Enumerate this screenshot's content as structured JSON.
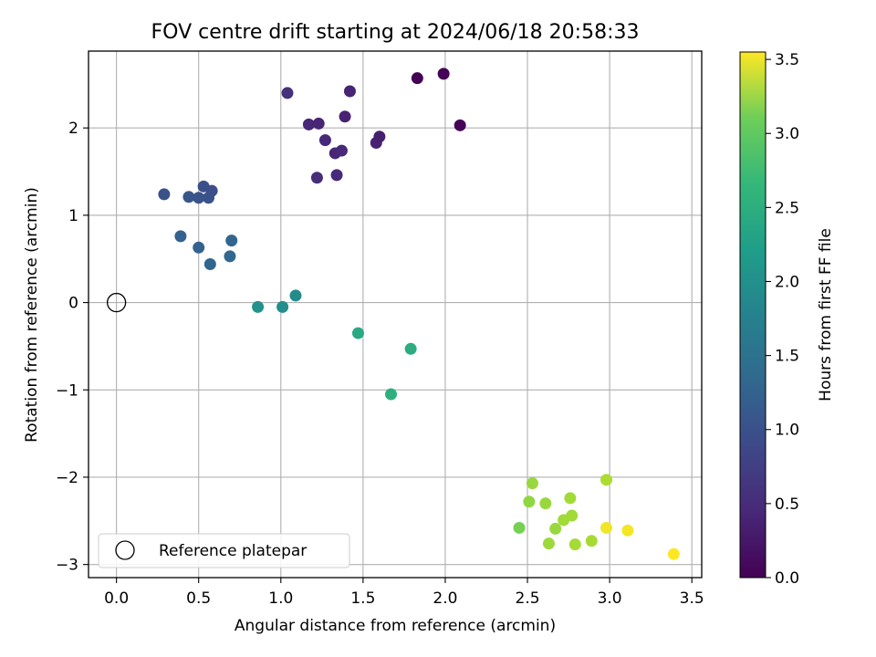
{
  "chart_data": {
    "type": "scatter",
    "title": "FOV centre drift starting at 2024/06/18 20:58:33",
    "xlabel": "Angular distance from reference (arcmin)",
    "ylabel": "Rotation from reference (arcmin)",
    "xlim": [
      -0.17,
      3.56
    ],
    "ylim": [
      -3.15,
      2.88
    ],
    "xticks": [
      0.0,
      0.5,
      1.0,
      1.5,
      2.0,
      2.5,
      3.0,
      3.5
    ],
    "xtick_labels": [
      "0.0",
      "0.5",
      "1.0",
      "1.5",
      "2.0",
      "2.5",
      "3.0",
      "3.5"
    ],
    "yticks": [
      -3,
      -2,
      -1,
      0,
      1,
      2
    ],
    "ytick_labels": [
      "−3",
      "−2",
      "−1",
      "0",
      "1",
      "2"
    ],
    "grid": true,
    "colormap": "viridis",
    "colorbar": {
      "label": "Hours from first FF file",
      "range": [
        0.0,
        3.55
      ],
      "ticks": [
        0.0,
        0.5,
        1.0,
        1.5,
        2.0,
        2.5,
        3.0,
        3.5
      ],
      "tick_labels": [
        "0.0",
        "0.5",
        "1.0",
        "1.5",
        "2.0",
        "2.5",
        "3.0",
        "3.5"
      ]
    },
    "reference": {
      "x": 0.0,
      "y": 0.0,
      "label": "Reference platepar"
    },
    "legend": {
      "location": "lower-left",
      "entries": [
        "Reference platepar"
      ]
    },
    "points": [
      {
        "x": 1.83,
        "y": 2.57,
        "c": 0.0
      },
      {
        "x": 1.99,
        "y": 2.62,
        "c": 0.02
      },
      {
        "x": 2.09,
        "y": 2.03,
        "c": 0.04
      },
      {
        "x": 1.04,
        "y": 2.4,
        "c": 0.5
      },
      {
        "x": 1.42,
        "y": 2.42,
        "c": 0.35
      },
      {
        "x": 1.17,
        "y": 2.04,
        "c": 0.38
      },
      {
        "x": 1.23,
        "y": 2.05,
        "c": 0.36
      },
      {
        "x": 1.39,
        "y": 2.13,
        "c": 0.34
      },
      {
        "x": 1.27,
        "y": 1.86,
        "c": 0.4
      },
      {
        "x": 1.33,
        "y": 1.71,
        "c": 0.37
      },
      {
        "x": 1.37,
        "y": 1.74,
        "c": 0.39
      },
      {
        "x": 1.58,
        "y": 1.83,
        "c": 0.33
      },
      {
        "x": 1.6,
        "y": 1.9,
        "c": 0.3
      },
      {
        "x": 1.22,
        "y": 1.43,
        "c": 0.45
      },
      {
        "x": 1.34,
        "y": 1.46,
        "c": 0.43
      },
      {
        "x": 0.29,
        "y": 1.24,
        "c": 0.9
      },
      {
        "x": 0.44,
        "y": 1.21,
        "c": 0.95
      },
      {
        "x": 0.5,
        "y": 1.2,
        "c": 0.92
      },
      {
        "x": 0.53,
        "y": 1.33,
        "c": 0.88
      },
      {
        "x": 0.58,
        "y": 1.28,
        "c": 0.86
      },
      {
        "x": 0.56,
        "y": 1.2,
        "c": 0.9
      },
      {
        "x": 0.39,
        "y": 0.76,
        "c": 1.1
      },
      {
        "x": 0.5,
        "y": 0.63,
        "c": 1.12
      },
      {
        "x": 0.57,
        "y": 0.44,
        "c": 1.15
      },
      {
        "x": 0.69,
        "y": 0.53,
        "c": 1.18
      },
      {
        "x": 0.7,
        "y": 0.71,
        "c": 1.16
      },
      {
        "x": 0.86,
        "y": -0.05,
        "c": 1.8
      },
      {
        "x": 1.01,
        "y": -0.05,
        "c": 1.75
      },
      {
        "x": 1.09,
        "y": 0.08,
        "c": 1.7
      },
      {
        "x": 1.47,
        "y": -0.35,
        "c": 2.15
      },
      {
        "x": 1.79,
        "y": -0.53,
        "c": 2.2
      },
      {
        "x": 1.67,
        "y": -1.05,
        "c": 2.25
      },
      {
        "x": 2.45,
        "y": -2.58,
        "c": 2.8
      },
      {
        "x": 2.51,
        "y": -2.28,
        "c": 2.95
      },
      {
        "x": 2.53,
        "y": -2.07,
        "c": 3.0
      },
      {
        "x": 2.61,
        "y": -2.3,
        "c": 3.0
      },
      {
        "x": 2.63,
        "y": -2.76,
        "c": 3.02
      },
      {
        "x": 2.67,
        "y": -2.59,
        "c": 3.0
      },
      {
        "x": 2.72,
        "y": -2.49,
        "c": 3.05
      },
      {
        "x": 2.76,
        "y": -2.24,
        "c": 3.05
      },
      {
        "x": 2.77,
        "y": -2.44,
        "c": 3.05
      },
      {
        "x": 2.79,
        "y": -2.77,
        "c": 3.07
      },
      {
        "x": 2.89,
        "y": -2.73,
        "c": 3.08
      },
      {
        "x": 2.98,
        "y": -2.03,
        "c": 3.1
      },
      {
        "x": 2.98,
        "y": -2.58,
        "c": 3.48
      },
      {
        "x": 3.11,
        "y": -2.61,
        "c": 3.5
      },
      {
        "x": 3.39,
        "y": -2.88,
        "c": 3.55
      }
    ]
  }
}
